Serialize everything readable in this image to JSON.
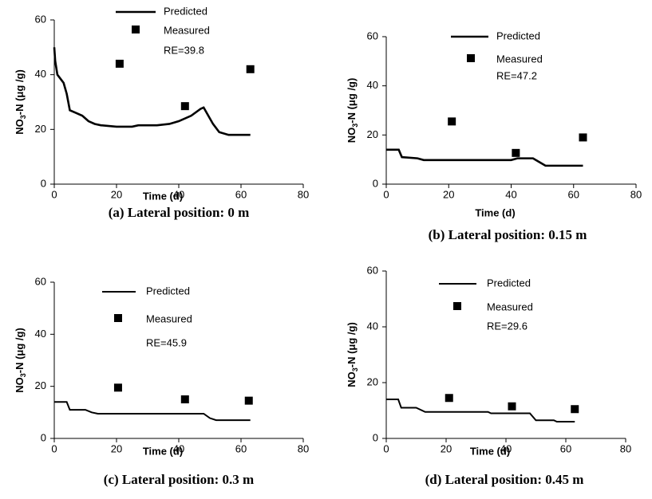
{
  "chart_data": [
    {
      "type": "line",
      "title": "(a) Lateral position: 0 m",
      "xlabel": "Time (d)",
      "ylabel": [
        "NO",
        "3",
        "-N (μg /g)"
      ],
      "xlim": [
        0,
        80
      ],
      "xticks": [
        0,
        20,
        40,
        60,
        80
      ],
      "ylim": [
        0,
        60
      ],
      "yticks": [
        0,
        20,
        40,
        60
      ],
      "annotation": "RE=39.8",
      "series": [
        {
          "name": "Predicted",
          "kind": "line",
          "color": "#000000",
          "x": [
            0,
            0.3,
            1,
            3,
            4,
            5,
            7,
            9,
            11,
            13,
            15,
            20,
            25,
            27,
            33,
            37,
            40,
            44,
            47,
            48,
            49,
            51,
            53,
            56,
            63
          ],
          "values": [
            50,
            45,
            40,
            37,
            33,
            27,
            26,
            25,
            23,
            22,
            21.5,
            21,
            21,
            21.5,
            21.5,
            22,
            23,
            25,
            27.5,
            28,
            26,
            22,
            19,
            18,
            18
          ]
        },
        {
          "name": "Measured",
          "kind": "marker",
          "color": "#000000",
          "x": [
            21,
            42,
            63
          ],
          "values": [
            44,
            28.5,
            42
          ]
        }
      ]
    },
    {
      "type": "line",
      "title": "(b) Lateral position: 0.15 m",
      "xlabel": "Time (d)",
      "ylabel": [
        "NO",
        "3",
        "-N (μg /g)"
      ],
      "xlim": [
        0,
        80
      ],
      "xticks": [
        0,
        20,
        40,
        60,
        80
      ],
      "ylim": [
        0,
        60
      ],
      "yticks": [
        0,
        20,
        40,
        60
      ],
      "annotation": "RE=47.2",
      "series": [
        {
          "name": "Predicted",
          "kind": "line",
          "color": "#000000",
          "x": [
            0,
            4,
            5,
            10,
            12,
            40,
            42,
            47,
            49,
            51,
            63
          ],
          "values": [
            14,
            14,
            11,
            10.5,
            9.8,
            9.8,
            10.5,
            10.5,
            9,
            7.5,
            7.5
          ]
        },
        {
          "name": "Measured",
          "kind": "marker",
          "color": "#000000",
          "x": [
            21,
            41.5,
            63
          ],
          "values": [
            25.5,
            12.7,
            19
          ]
        }
      ]
    },
    {
      "type": "line",
      "title": "(c) Lateral position: 0.3 m",
      "xlabel": "Time (d)",
      "ylabel": [
        "NO",
        "3",
        "-N (μg /g)"
      ],
      "xlim": [
        0,
        80
      ],
      "xticks": [
        0,
        20,
        40,
        60,
        80
      ],
      "ylim": [
        0,
        60
      ],
      "yticks": [
        0,
        20,
        40,
        60
      ],
      "annotation": "RE=45.9",
      "series": [
        {
          "name": "Predicted",
          "kind": "line",
          "color": "#000000",
          "x": [
            0,
            4,
            5,
            10,
            12,
            14,
            48,
            50,
            52,
            63
          ],
          "values": [
            14,
            14,
            11,
            11,
            10,
            9.5,
            9.5,
            7.8,
            7,
            7
          ]
        },
        {
          "name": "Measured",
          "kind": "marker",
          "color": "#000000",
          "x": [
            20.5,
            42,
            62.5
          ],
          "values": [
            19.5,
            15,
            14.5
          ]
        }
      ]
    },
    {
      "type": "line",
      "title": "(d) Lateral position: 0.45 m",
      "xlabel": "Time (d)",
      "ylabel": [
        "NO",
        "3",
        "-N (μg /g)"
      ],
      "xlim": [
        0,
        80
      ],
      "xticks": [
        0,
        20,
        40,
        60,
        80
      ],
      "ylim": [
        0,
        60
      ],
      "yticks": [
        0,
        20,
        40,
        60
      ],
      "annotation": "RE=29.6",
      "series": [
        {
          "name": "Predicted",
          "kind": "line",
          "color": "#000000",
          "x": [
            0,
            4,
            5,
            10,
            13,
            34,
            35,
            48,
            50,
            56,
            57,
            63
          ],
          "values": [
            14,
            14,
            11,
            11,
            9.5,
            9.5,
            9,
            9,
            6.5,
            6.5,
            6,
            6
          ]
        },
        {
          "name": "Measured",
          "kind": "marker",
          "color": "#000000",
          "x": [
            21,
            42,
            63
          ],
          "values": [
            14.5,
            11.5,
            10.5
          ]
        }
      ]
    }
  ]
}
